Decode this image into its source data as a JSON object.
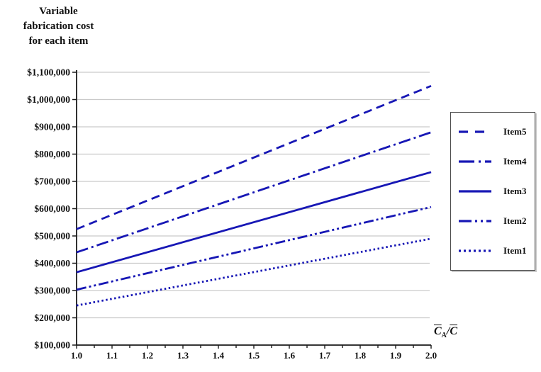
{
  "title": {
    "line1": "Variable",
    "line2": "fabrication cost",
    "line3": "for each item"
  },
  "x_axis_label": {
    "term1": "C",
    "term1_sub": "A",
    "divider": "/",
    "term2": "C"
  },
  "colors": {
    "line": "#1717b5",
    "grid": "#c9c9c9",
    "axis": "#1a1a1a",
    "background": "#ffffff",
    "legend_border": "#4a4a4a"
  },
  "chart_data": {
    "type": "line",
    "title": "Variable fabrication cost for each item",
    "xlabel": "C̄A/C̄ (ratio, C-bar-sub-A over C-bar)",
    "ylabel": "Variable fabrication cost for each item",
    "xlim": [
      1.0,
      2.0
    ],
    "ylim": [
      100000,
      1100000
    ],
    "x_major_tick_step": 0.1,
    "x_minor_tick_step": 0.05,
    "y_tick_step": 100000,
    "x_tick_labels": [
      "1.0",
      "1.1",
      "1.2",
      "1.3",
      "1.4",
      "1.5",
      "1.6",
      "1.7",
      "1.8",
      "1.9",
      "2.0"
    ],
    "y_tick_labels": [
      "$100,000",
      "$200,000",
      "$300,000",
      "$400,000",
      "$500,000",
      "$600,000",
      "$700,000",
      "$800,000",
      "$900,000",
      "$1,000,000",
      "$1,100,000"
    ],
    "grid": "horizontal",
    "legend_position": "right",
    "legend_order_top_to_bottom": [
      "Item5",
      "Item4",
      "Item3",
      "Item2",
      "Item1"
    ],
    "x": [
      1.0,
      2.0
    ],
    "series": [
      {
        "name": "Item5",
        "style": "dashed",
        "values": [
          525000,
          1050000
        ]
      },
      {
        "name": "Item4",
        "style": "dash-dot",
        "values": [
          440000,
          880000
        ]
      },
      {
        "name": "Item3",
        "style": "solid",
        "values": [
          367000,
          734000
        ]
      },
      {
        "name": "Item2",
        "style": "dash-dot-dot",
        "values": [
          303000,
          606000
        ]
      },
      {
        "name": "Item1",
        "style": "dotted",
        "values": [
          245000,
          490000
        ]
      }
    ]
  }
}
